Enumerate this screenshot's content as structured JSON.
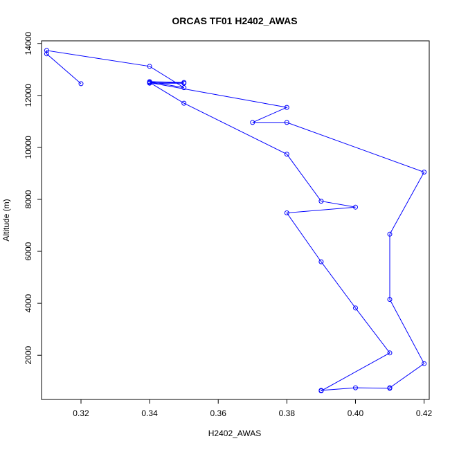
{
  "chart_data": {
    "type": "line",
    "title": "ORCAS TF01 H2402_AWAS",
    "xlabel": "H2402_AWAS",
    "ylabel": "Altitude (m)",
    "xlim": [
      0.3085,
      0.4215
    ],
    "ylim": [
      300,
      14100
    ],
    "xticks": [
      0.32,
      0.34,
      0.36,
      0.38,
      0.4,
      0.42
    ],
    "xtick_labels": [
      "0.32",
      "0.34",
      "0.36",
      "0.38",
      "0.40",
      "0.42"
    ],
    "yticks": [
      2000,
      4000,
      6000,
      8000,
      10000,
      12000,
      14000
    ],
    "ytick_labels": [
      "2000",
      "4000",
      "6000",
      "8000",
      "10000",
      "12000",
      "14000"
    ],
    "series_color": "#0000ff",
    "marker": "open-circle",
    "grid": false,
    "legend": "none",
    "x": [
      0.32,
      0.31,
      0.31,
      0.34,
      0.35,
      0.34,
      0.35,
      0.34,
      0.35,
      0.34,
      0.38,
      0.37,
      0.38,
      0.42,
      0.41,
      0.41,
      0.42,
      0.41,
      0.41,
      0.4,
      0.39,
      0.39,
      0.41,
      0.4,
      0.39,
      0.38,
      0.4,
      0.39,
      0.38,
      0.35,
      0.34
    ],
    "y": [
      12450,
      13600,
      13730,
      13120,
      12300,
      12530,
      12500,
      12470,
      12470,
      12490,
      11540,
      10960,
      10960,
      9050,
      6660,
      4150,
      1680,
      750,
      730,
      750,
      650,
      630,
      2090,
      3820,
      5600,
      7480,
      7700,
      7930,
      9740,
      11700,
      12500
    ]
  }
}
